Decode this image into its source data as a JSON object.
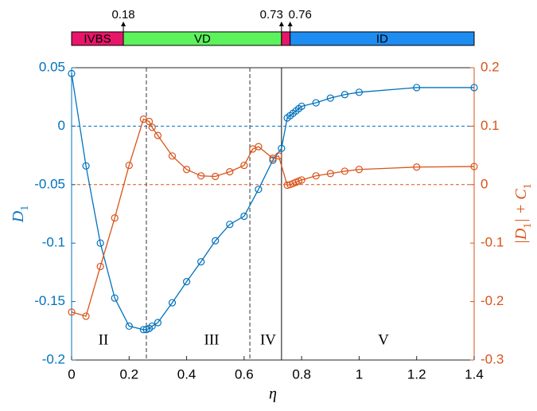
{
  "chart_data": {
    "type": "line",
    "xlabel": "η",
    "ylabel": [
      "D",
      "1"
    ],
    "y2label": [
      "|D",
      "1",
      "| + C",
      "1"
    ],
    "xlim": [
      0,
      1.4
    ],
    "xticks": [
      0,
      0.2,
      0.4,
      0.6,
      0.8,
      1,
      1.2,
      1.4
    ],
    "ylim": [
      -0.2,
      0.05
    ],
    "yticks": [
      -0.2,
      -0.15,
      -0.1,
      -0.05,
      0,
      0.05
    ],
    "y2lim": [
      -0.3,
      0.2
    ],
    "y2ticks": [
      -0.3,
      -0.2,
      -0.1,
      0,
      0.1,
      0.2
    ],
    "reference_lines": {
      "y": 0,
      "y2": 0
    },
    "vlines": [
      0.26,
      0.62,
      0.73
    ],
    "regions": [
      "II",
      "III",
      "IV",
      "V"
    ],
    "series": [
      {
        "color": "#0072bd",
        "x": [
          0,
          0.05,
          0.1,
          0.15,
          0.2,
          0.25,
          0.26,
          0.27,
          0.28,
          0.3,
          0.35,
          0.4,
          0.45,
          0.5,
          0.55,
          0.6,
          0.65,
          0.7,
          0.73,
          0.75,
          0.76,
          0.77,
          0.78,
          0.79,
          0.8,
          0.85,
          0.9,
          0.95,
          1,
          1.2,
          1.4
        ],
        "values": [
          0.045,
          -0.034,
          -0.1,
          -0.147,
          -0.171,
          -0.174,
          -0.174,
          -0.173,
          -0.171,
          -0.168,
          -0.151,
          -0.133,
          -0.116,
          -0.098,
          -0.084,
          -0.077,
          -0.054,
          -0.029,
          -0.019,
          0.007,
          0.009,
          0.011,
          0.013,
          0.015,
          0.017,
          0.02,
          0.024,
          0.027,
          0.029,
          0.033,
          0.033
        ]
      },
      {
        "color": "#d95319",
        "axis": "y2",
        "x": [
          0,
          0.05,
          0.1,
          0.15,
          0.2,
          0.25,
          0.27,
          0.28,
          0.3,
          0.35,
          0.4,
          0.45,
          0.5,
          0.55,
          0.6,
          0.63,
          0.65,
          0.7,
          0.72,
          0.75,
          0.76,
          0.77,
          0.78,
          0.79,
          0.8,
          0.85,
          0.9,
          0.95,
          1,
          1.2,
          1.4
        ],
        "values": [
          -0.218,
          -0.225,
          -0.14,
          -0.057,
          0.033,
          0.112,
          0.108,
          0.098,
          0.084,
          0.049,
          0.026,
          0.015,
          0.014,
          0.022,
          0.033,
          0.061,
          0.065,
          0.045,
          0.049,
          -0.001,
          0,
          0.002,
          0.004,
          0.006,
          0.008,
          0.015,
          0.019,
          0.023,
          0.026,
          0.03,
          0.031
        ]
      }
    ],
    "phase_bar": {
      "segments": [
        {
          "label": "IVBS",
          "start": 0,
          "end": 0.18,
          "color": "#e8166a"
        },
        {
          "label": "VD",
          "start": 0.18,
          "end": 0.73,
          "color": "#5cf25c"
        },
        {
          "label": null,
          "start": 0.73,
          "end": 0.76,
          "color": "#e8166a"
        },
        {
          "label": "ID",
          "start": 0.76,
          "end": 1.4,
          "color": "#1e8cf0"
        }
      ],
      "markers": [
        0.18,
        0.73,
        0.76
      ]
    }
  }
}
